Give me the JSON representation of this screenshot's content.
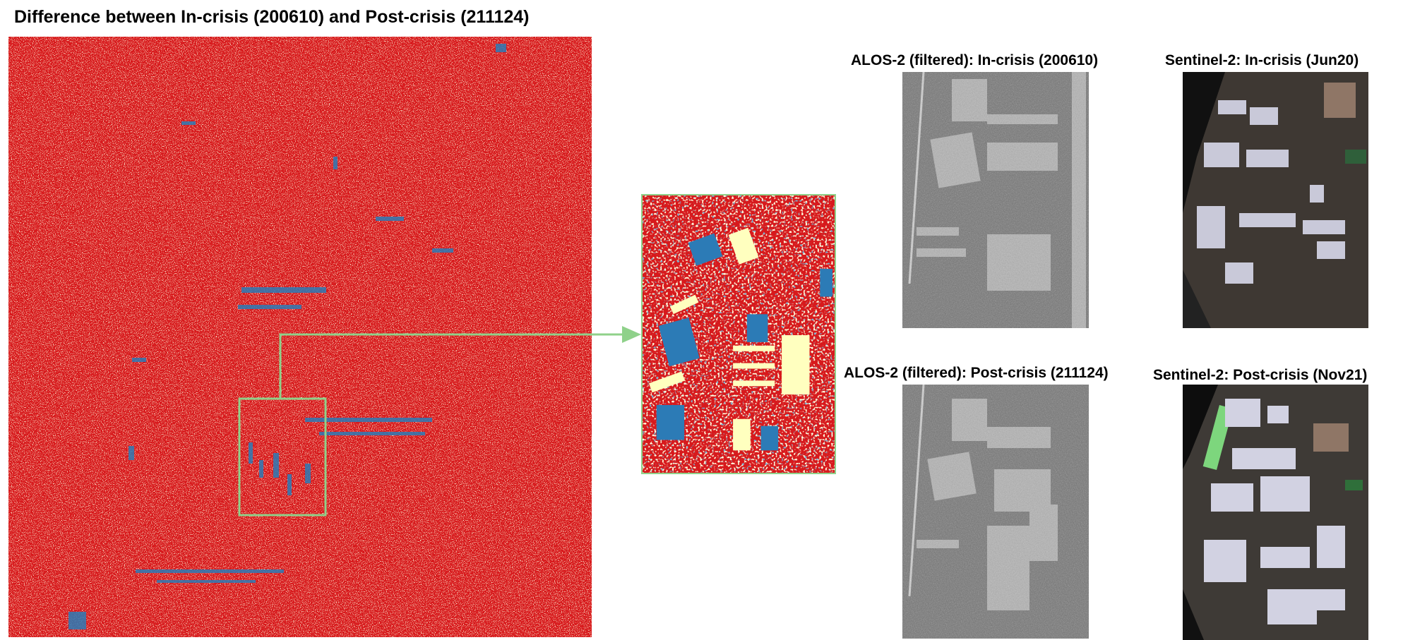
{
  "main": {
    "title": "Difference between In-crisis (200610)  and Post-crisis (211124)"
  },
  "panels": {
    "alos_in_title": "ALOS-2 (filtered): In-crisis (200610)",
    "s2_in_title": "Sentinel-2: In-crisis (Jun20)",
    "alos_post_title": "ALOS-2 (filtered): Post-crisis (211124)",
    "s2_post_title": "Sentinel-2: Post-crisis (Nov21)"
  },
  "colors": {
    "change_red": "#d7191c",
    "noise_cream": "#ffffbf",
    "change_blue": "#2c7bb6",
    "highlight_green": "#8fd18a",
    "sar_gray": "#7a7a7a",
    "optical_dark": "#3e3833"
  }
}
